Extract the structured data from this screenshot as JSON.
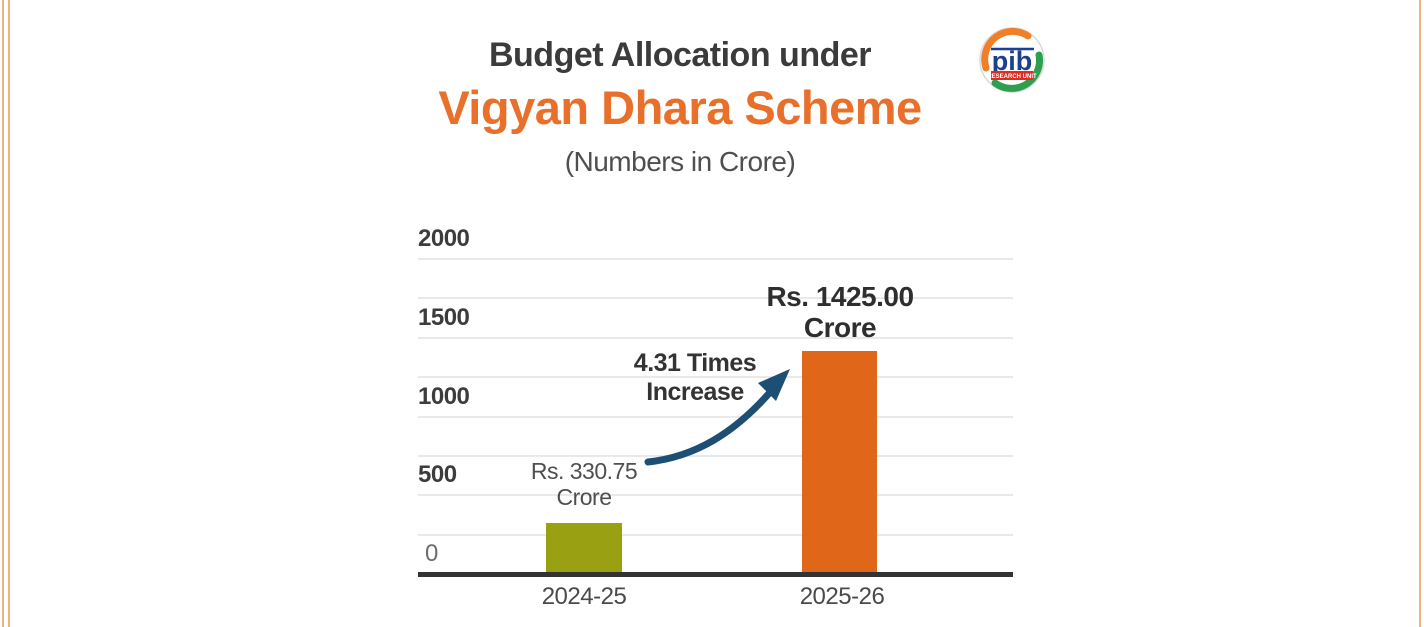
{
  "page": {
    "border_color": "#f0b27c",
    "background": "#ffffff"
  },
  "header": {
    "title_line1": "Budget Allocation under",
    "title_line2": "Vigyan Dhara Scheme",
    "subtitle": "(Numbers in Crore)",
    "title_color": "#3b3b3b",
    "accent_color": "#e8702a"
  },
  "logo": {
    "name": "PIB Research Unit logo",
    "text": "pib",
    "banner": "RESEARCH UNIT",
    "colors": {
      "blue": "#1d3f8f",
      "orange": "#f07f28",
      "green": "#2e9e4f",
      "red": "#e02b20"
    }
  },
  "chart_data": {
    "type": "bar",
    "title": "Budget Allocation under Vigyan Dhara Scheme",
    "subtitle": "(Numbers in Crore)",
    "categories": [
      "2024-25",
      "2025-26"
    ],
    "values": [
      330.75,
      1425.0
    ],
    "bar_colors": [
      "#99a012",
      "#e0671a"
    ],
    "bar_labels": [
      {
        "line1": "Rs. 330.75",
        "line2": "Crore"
      },
      {
        "line1": "Rs. 1425.00",
        "line2": "Crore"
      }
    ],
    "xlabel": "",
    "ylabel": "",
    "ylim": [
      0,
      2000
    ],
    "gridline_interval": 250,
    "ytick_labels": [
      "2000",
      "1500",
      "1000",
      "500",
      "0"
    ],
    "grid": "horizontal",
    "legend": "none",
    "annotation": {
      "line1": "4.31 Times",
      "line2": "Increase",
      "arrow_color": "#1d4e74"
    },
    "axis_color": "#333333",
    "gridline_color": "#e9e9e9"
  }
}
